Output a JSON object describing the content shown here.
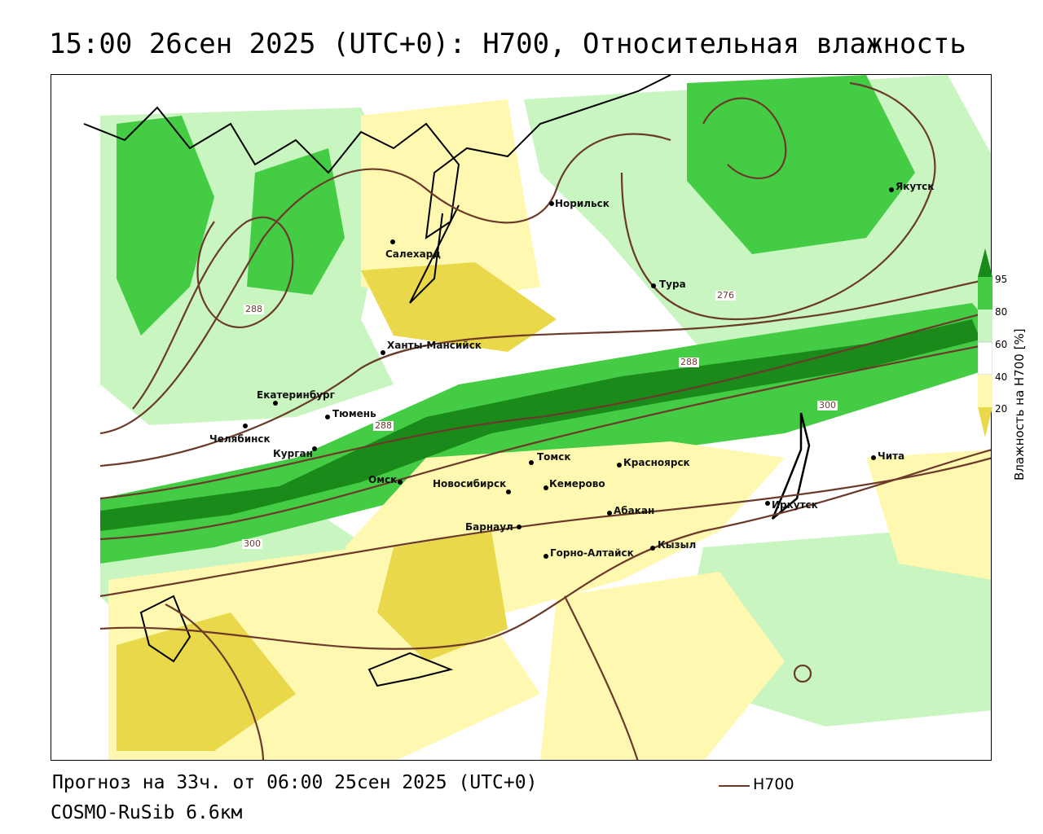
{
  "title": "15:00 26сен 2025 (UTC+0): H700, Относительная влажность",
  "footer": {
    "forecast": "Прогноз на 33ч. от 06:00 25сен 2025 (UTC+0)",
    "model": "COSMO-RuSib 6.6км",
    "legend_label": "H700"
  },
  "colorbar": {
    "title": "Влажность на H700 [%]",
    "ticks": [
      "95",
      "80",
      "60",
      "40",
      "20"
    ],
    "colors": {
      "c95": "#1a8a1a",
      "c80": "#44cc44",
      "c60": "#c8f5c0",
      "c40": "#ffffff",
      "c20": "#fff8b0",
      "c0": "#e8d84a"
    }
  },
  "cities": [
    {
      "name": "Норильск"
    },
    {
      "name": "Якутск"
    },
    {
      "name": "Салехард"
    },
    {
      "name": "Тура"
    },
    {
      "name": "Ханты-Мансийск"
    },
    {
      "name": "Екатеринбург"
    },
    {
      "name": "Тюмень"
    },
    {
      "name": "Челябинск"
    },
    {
      "name": "Курган"
    },
    {
      "name": "Омск"
    },
    {
      "name": "Томск"
    },
    {
      "name": "Новосибирск"
    },
    {
      "name": "Кемерово"
    },
    {
      "name": "Красноярск"
    },
    {
      "name": "Барнаул"
    },
    {
      "name": "Абакан"
    },
    {
      "name": "Горно-Алтайск"
    },
    {
      "name": "Кызыл"
    },
    {
      "name": "Иркутск"
    },
    {
      "name": "Чита"
    }
  ],
  "contour_labels": [
    "288",
    "276",
    "288",
    "288",
    "300",
    "300"
  ]
}
